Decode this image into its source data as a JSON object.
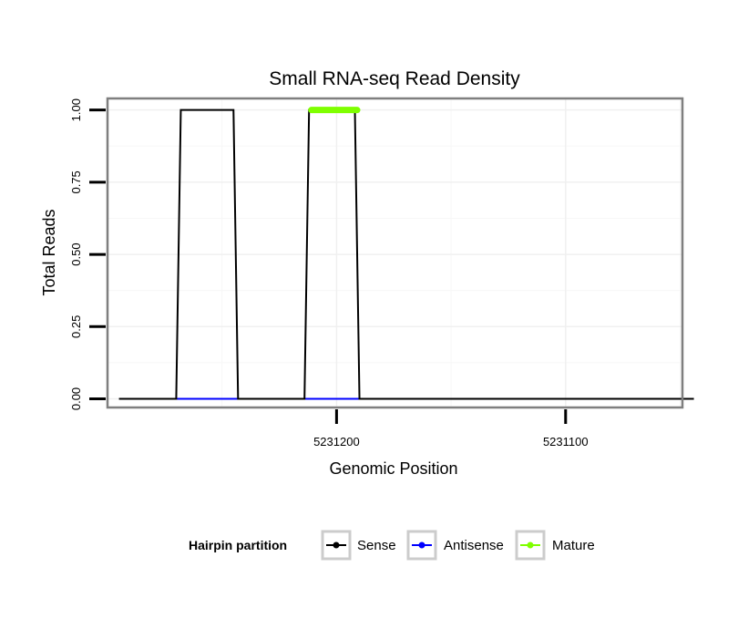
{
  "chart_data": {
    "type": "line",
    "title": "Small RNA-seq Read Density",
    "xlabel": "Genomic Position",
    "ylabel": "Total Reads",
    "x_reversed": true,
    "xlim": [
      5231300,
      5231049
    ],
    "ylim": [
      -0.03,
      1.04
    ],
    "x_ticks": [
      5231200,
      5231100
    ],
    "x_tick_labels": [
      "5231200",
      "5231100"
    ],
    "y_ticks": [
      0,
      0.25,
      0.5,
      0.75,
      1
    ],
    "y_tick_labels": [
      "0.00",
      "0.25",
      "0.50",
      "0.75",
      "1.00"
    ],
    "grid": true,
    "legend": {
      "title": "Hairpin partition",
      "position": "bottom",
      "entries": [
        "Sense",
        "Antisense",
        "Mature"
      ]
    },
    "series": [
      {
        "name": "Sense",
        "color": "#000000",
        "x": [
          5231295,
          5231270,
          5231268,
          5231245,
          5231243,
          5231214,
          5231212,
          5231192,
          5231190,
          5231044
        ],
        "values": [
          0,
          0,
          1,
          1,
          0,
          0,
          1,
          1,
          0,
          0
        ]
      },
      {
        "name": "Antisense",
        "color": "#0000ff",
        "segments": [
          {
            "x": [
              5231270,
              5231243
            ],
            "values": [
              0,
              0
            ]
          },
          {
            "x": [
              5231214,
              5231190
            ],
            "values": [
              0,
              0
            ]
          }
        ]
      },
      {
        "name": "Mature",
        "color": "#7fff00",
        "x": [
          5231211,
          5231191
        ],
        "values": [
          1,
          1
        ]
      }
    ]
  }
}
